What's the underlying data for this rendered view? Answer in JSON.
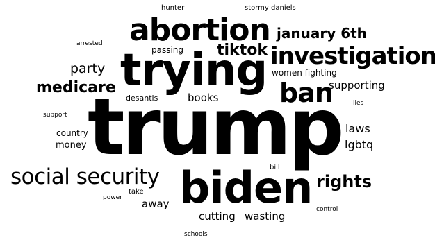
{
  "text_color": "#000000",
  "background_color": "#ffffff",
  "words": [
    {
      "key": "trump",
      "text": "trump"
    },
    {
      "key": "trying",
      "text": "trying"
    },
    {
      "key": "biden",
      "text": "biden"
    },
    {
      "key": "abortion",
      "text": "abortion"
    },
    {
      "key": "investigations",
      "text": "investigations"
    },
    {
      "key": "social-security",
      "text": "social security"
    },
    {
      "key": "ban",
      "text": "ban"
    },
    {
      "key": "rights",
      "text": "rights"
    },
    {
      "key": "tiktok",
      "text": "tiktok"
    },
    {
      "key": "january-6th",
      "text": "january 6th"
    },
    {
      "key": "medicare",
      "text": "medicare"
    },
    {
      "key": "party",
      "text": "party"
    },
    {
      "key": "books",
      "text": "books"
    },
    {
      "key": "supporting",
      "text": "supporting"
    },
    {
      "key": "laws",
      "text": "laws"
    },
    {
      "key": "lgbtq",
      "text": "lgbtq"
    },
    {
      "key": "away",
      "text": "away"
    },
    {
      "key": "cutting",
      "text": "cutting"
    },
    {
      "key": "wasting",
      "text": "wasting"
    },
    {
      "key": "women-fighting",
      "text": "women fighting"
    },
    {
      "key": "country",
      "text": "country"
    },
    {
      "key": "money",
      "text": "money"
    },
    {
      "key": "passing",
      "text": "passing"
    },
    {
      "key": "desantis",
      "text": "desantis"
    },
    {
      "key": "hunter",
      "text": "hunter"
    },
    {
      "key": "stormy-daniels",
      "text": "stormy daniels"
    },
    {
      "key": "arrested",
      "text": "arrested"
    },
    {
      "key": "support",
      "text": "support"
    },
    {
      "key": "lies",
      "text": "lies"
    },
    {
      "key": "bill",
      "text": "bill"
    },
    {
      "key": "take",
      "text": "take"
    },
    {
      "key": "power",
      "text": "power"
    },
    {
      "key": "control",
      "text": "control"
    },
    {
      "key": "schools",
      "text": "schools"
    }
  ]
}
